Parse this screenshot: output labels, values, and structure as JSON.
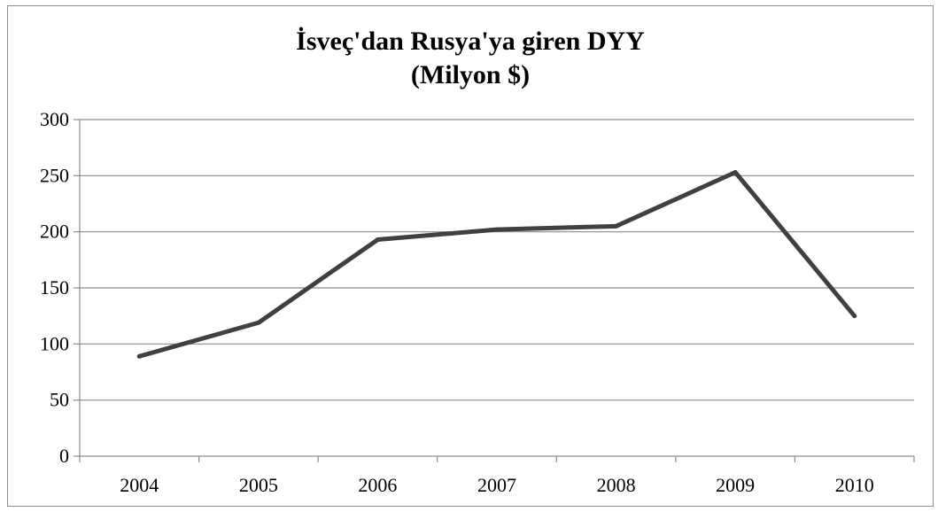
{
  "chart_data": {
    "type": "line",
    "title_lines": [
      "İsveç'dan Rusya'ya giren DYY",
      "(Milyon $)"
    ],
    "categories": [
      "2004",
      "2005",
      "2006",
      "2007",
      "2008",
      "2009",
      "2010"
    ],
    "values": [
      89,
      119,
      193,
      202,
      205,
      253,
      125
    ],
    "y_ticks": [
      "0",
      "50",
      "100",
      "150",
      "200",
      "250",
      "300"
    ],
    "ylim": [
      0,
      300
    ],
    "xlabel": "",
    "ylabel": "",
    "grid": true,
    "legend": "none",
    "colors": {
      "line": "#404040",
      "grid": "#8c8c8c",
      "axis": "#8c8c8c"
    }
  }
}
